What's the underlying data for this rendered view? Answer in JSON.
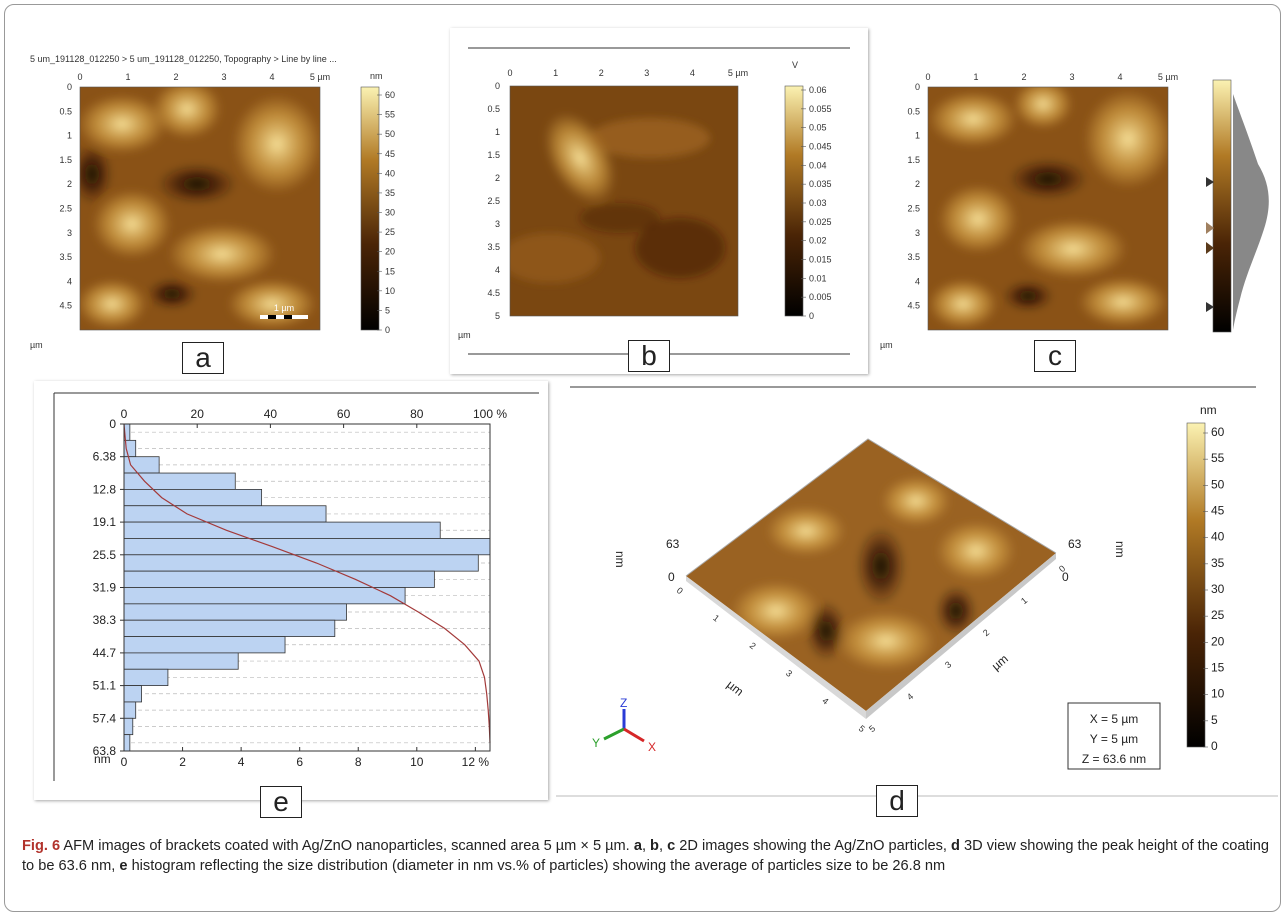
{
  "panel_a": {
    "header": "5 um_191128_012250 > 5 um_191128_012250, Topography > Line by line ...",
    "x_ticks": [
      "0",
      "1",
      "2",
      "3",
      "4",
      "5 µm"
    ],
    "y_ticks": [
      "0",
      "0.5",
      "1",
      "1.5",
      "2",
      "2.5",
      "3",
      "3.5",
      "4",
      "4.5"
    ],
    "axis_unit": "µm",
    "scale_unit": "nm",
    "scale_ticks": [
      "60",
      "55",
      "50",
      "45",
      "40",
      "35",
      "30",
      "25",
      "20",
      "15",
      "10",
      "5",
      "0"
    ],
    "scale_bar": "1 µm",
    "label": "a"
  },
  "panel_b": {
    "x_ticks": [
      "0",
      "1",
      "2",
      "3",
      "4",
      "5 µm"
    ],
    "y_ticks": [
      "0",
      "0.5",
      "1",
      "1.5",
      "2",
      "2.5",
      "3",
      "3.5",
      "4",
      "4.5",
      "5"
    ],
    "axis_unit": "µm",
    "scale_unit": "V",
    "scale_ticks": [
      "0.06",
      "0.055",
      "0.05",
      "0.045",
      "0.04",
      "0.035",
      "0.03",
      "0.025",
      "0.02",
      "0.015",
      "0.01",
      "0.005",
      "0"
    ],
    "label": "b"
  },
  "panel_c": {
    "x_ticks": [
      "0",
      "1",
      "2",
      "3",
      "4",
      "5 µm"
    ],
    "y_ticks": [
      "0",
      "0.5",
      "1",
      "1.5",
      "2",
      "2.5",
      "3",
      "3.5",
      "4",
      "4.5"
    ],
    "axis_unit": "µm",
    "label": "c"
  },
  "panel_e": {
    "top_ticks": [
      "0",
      "20",
      "40",
      "60",
      "80",
      "100 %"
    ],
    "bottom_ticks": [
      "0",
      "2",
      "4",
      "6",
      "8",
      "10",
      "12 %"
    ],
    "y_unit": "nm",
    "label": "e",
    "chart_data": {
      "type": "bar",
      "orientation": "horizontal",
      "y_ticks": [
        "0",
        "6.38",
        "12.8",
        "19.1",
        "25.5",
        "31.9",
        "38.3",
        "44.7",
        "51.1",
        "57.4",
        "63.8"
      ],
      "bin_centers_nm": [
        1.6,
        4.8,
        8.0,
        11.2,
        14.4,
        17.5,
        20.7,
        23.9,
        27.1,
        30.3,
        33.5,
        36.7,
        39.9,
        43.1,
        46.3,
        49.5,
        52.6,
        55.8,
        59.0,
        62.2
      ],
      "percent": [
        0.2,
        0.4,
        1.2,
        3.8,
        4.7,
        6.9,
        10.8,
        12.5,
        12.1,
        10.6,
        9.6,
        7.6,
        7.2,
        5.5,
        3.9,
        1.5,
        0.6,
        0.4,
        0.3,
        0.2
      ],
      "cumulative_percent": [
        0.2,
        0.6,
        1.8,
        5.6,
        10.3,
        17.2,
        28.0,
        40.5,
        52.6,
        63.2,
        72.8,
        80.4,
        87.6,
        93.1,
        97.0,
        98.5,
        99.1,
        99.5,
        99.8,
        100
      ],
      "xlim_bottom": [
        0,
        12.5
      ],
      "xlim_top": [
        0,
        100
      ],
      "bar_color": "#bcd3f2",
      "curve_color": "#a33a3a"
    }
  },
  "panel_d": {
    "scale_unit": "nm",
    "scale_ticks": [
      "60",
      "55",
      "50",
      "45",
      "40",
      "35",
      "30",
      "25",
      "20",
      "15",
      "10",
      "5",
      "0"
    ],
    "label_63_left": "63",
    "label_63_right": "63",
    "nm_left": "nm",
    "nm_right": "nm",
    "zero_left": "0",
    "zero_right": "0",
    "axis_um_left": "µm",
    "axis_um_right": "µm",
    "ticks_left": [
      "0",
      "1",
      "2",
      "3",
      "4",
      "5"
    ],
    "ticks_right": [
      "0",
      "1",
      "2",
      "3",
      "4",
      "5"
    ],
    "info": [
      "X = 5 µm",
      "Y = 5 µm",
      "Z = 63.6 nm"
    ],
    "axes_labels": [
      "Z",
      "Y",
      "X"
    ],
    "label": "d"
  },
  "caption": {
    "fig": "Fig. 6",
    "text_1": "AFM images of brackets coated with Ag/ZnO nanoparticles, scanned area 5 µm × 5 µm.",
    "a": "a",
    "b": "b",
    "c": "c",
    "text_2": "2D images showing the Ag/ZnO particles,",
    "d": "d",
    "text_3": "3D view showing the peak height of the coating to be 63.6 nm,",
    "e": "e",
    "text_4": "histogram reflecting the size distribution (diameter in nm vs.% of particles) showing the average of particles size to be 26.8 nm"
  },
  "colors": {
    "afm_dark": "#2a1305",
    "afm_mid": "#8a5216",
    "afm_light": "#f3da86"
  }
}
